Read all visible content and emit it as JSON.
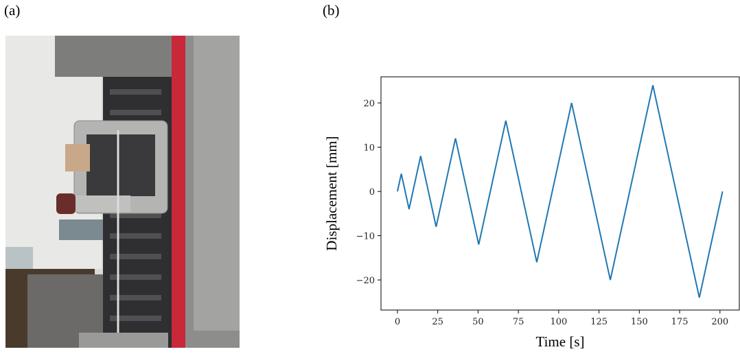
{
  "panel_labels": [
    "(a)",
    "(b)"
  ],
  "chart_data": {
    "type": "line",
    "xlabel": "Time [s]",
    "ylabel": "Displacement [mm]",
    "x": [
      0,
      2.4,
      7.2,
      14.4,
      24,
      36,
      50.4,
      67.2,
      86.4,
      108,
      132,
      158.4,
      187.2,
      201.6
    ],
    "values": [
      0,
      4,
      -4,
      8,
      -8,
      12,
      -12,
      16,
      -16,
      20,
      -20,
      24,
      -24,
      0
    ],
    "color": "#1f77b4",
    "xlim": [
      -10.2,
      212
    ],
    "ylim": [
      -26.8,
      25.9
    ],
    "xticks": [
      0,
      25,
      50,
      75,
      100,
      125,
      150,
      175,
      200
    ],
    "yticks": [
      {
        "value": -20,
        "label": "−20"
      },
      {
        "value": -10,
        "label": "−10"
      },
      0,
      10,
      20
    ],
    "grid": false
  }
}
